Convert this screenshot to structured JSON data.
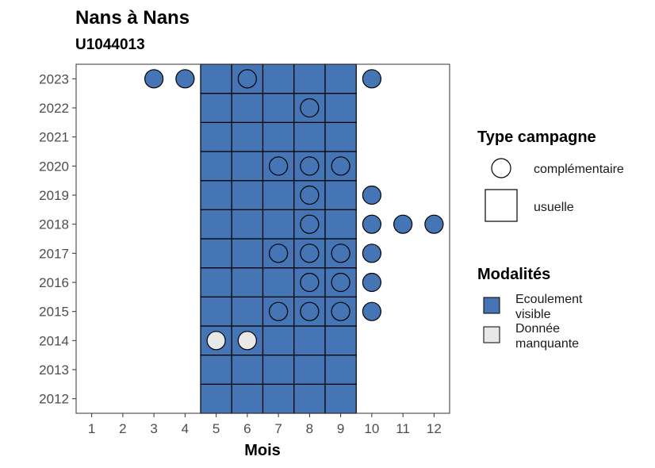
{
  "chart_data": {
    "type": "heatmap",
    "title": "Nans à Nans",
    "subtitle": "U1044013",
    "xlabel": "Mois",
    "ylabel": "",
    "x_ticks": [
      1,
      2,
      3,
      4,
      5,
      6,
      7,
      8,
      9,
      10,
      11,
      12
    ],
    "y_ticks": [
      2012,
      2013,
      2014,
      2015,
      2016,
      2017,
      2018,
      2019,
      2020,
      2021,
      2022,
      2023
    ],
    "xlim": [
      0.5,
      12.5
    ],
    "ylim": [
      2011.5,
      2023.5
    ],
    "grid": false,
    "legend_position": "right",
    "legends": {
      "type_campagne": {
        "title": "Type campagne",
        "entries": [
          {
            "key": "complementaire",
            "label": "complémentaire",
            "shape": "circle"
          },
          {
            "key": "usuelle",
            "label": "usuelle",
            "shape": "square"
          }
        ]
      },
      "modalites": {
        "title": "Modalités",
        "entries": [
          {
            "key": "ecoulement",
            "label_lines": [
              "Ecoulement",
              "visible"
            ],
            "color": "#4575b4"
          },
          {
            "key": "manquante",
            "label_lines": [
              "Donnée",
              "manquante"
            ],
            "color": "#e8e8e8"
          }
        ]
      }
    },
    "colors": {
      "ecoulement": "#4575b4",
      "manquante": "#e8e8e8"
    },
    "usuelle_months": [
      5,
      6,
      7,
      8,
      9
    ],
    "usuelle_years": [
      2012,
      2013,
      2014,
      2015,
      2016,
      2017,
      2018,
      2019,
      2020,
      2021,
      2022,
      2023
    ],
    "complementaire_points": [
      {
        "year": 2023,
        "month": 3,
        "modalite": "ecoulement"
      },
      {
        "year": 2023,
        "month": 4,
        "modalite": "ecoulement"
      },
      {
        "year": 2023,
        "month": 6,
        "modalite": "ecoulement"
      },
      {
        "year": 2023,
        "month": 10,
        "modalite": "ecoulement"
      },
      {
        "year": 2022,
        "month": 8,
        "modalite": "ecoulement"
      },
      {
        "year": 2020,
        "month": 7,
        "modalite": "ecoulement"
      },
      {
        "year": 2020,
        "month": 8,
        "modalite": "ecoulement"
      },
      {
        "year": 2020,
        "month": 9,
        "modalite": "ecoulement"
      },
      {
        "year": 2019,
        "month": 8,
        "modalite": "ecoulement"
      },
      {
        "year": 2019,
        "month": 10,
        "modalite": "ecoulement"
      },
      {
        "year": 2018,
        "month": 8,
        "modalite": "ecoulement"
      },
      {
        "year": 2018,
        "month": 10,
        "modalite": "ecoulement"
      },
      {
        "year": 2018,
        "month": 11,
        "modalite": "ecoulement"
      },
      {
        "year": 2018,
        "month": 12,
        "modalite": "ecoulement"
      },
      {
        "year": 2017,
        "month": 7,
        "modalite": "ecoulement"
      },
      {
        "year": 2017,
        "month": 8,
        "modalite": "ecoulement"
      },
      {
        "year": 2017,
        "month": 9,
        "modalite": "ecoulement"
      },
      {
        "year": 2017,
        "month": 10,
        "modalite": "ecoulement"
      },
      {
        "year": 2016,
        "month": 8,
        "modalite": "ecoulement"
      },
      {
        "year": 2016,
        "month": 9,
        "modalite": "ecoulement"
      },
      {
        "year": 2016,
        "month": 10,
        "modalite": "ecoulement"
      },
      {
        "year": 2015,
        "month": 7,
        "modalite": "ecoulement"
      },
      {
        "year": 2015,
        "month": 8,
        "modalite": "ecoulement"
      },
      {
        "year": 2015,
        "month": 9,
        "modalite": "ecoulement"
      },
      {
        "year": 2015,
        "month": 10,
        "modalite": "ecoulement"
      },
      {
        "year": 2014,
        "month": 5,
        "modalite": "manquante"
      },
      {
        "year": 2014,
        "month": 6,
        "modalite": "manquante"
      }
    ]
  }
}
